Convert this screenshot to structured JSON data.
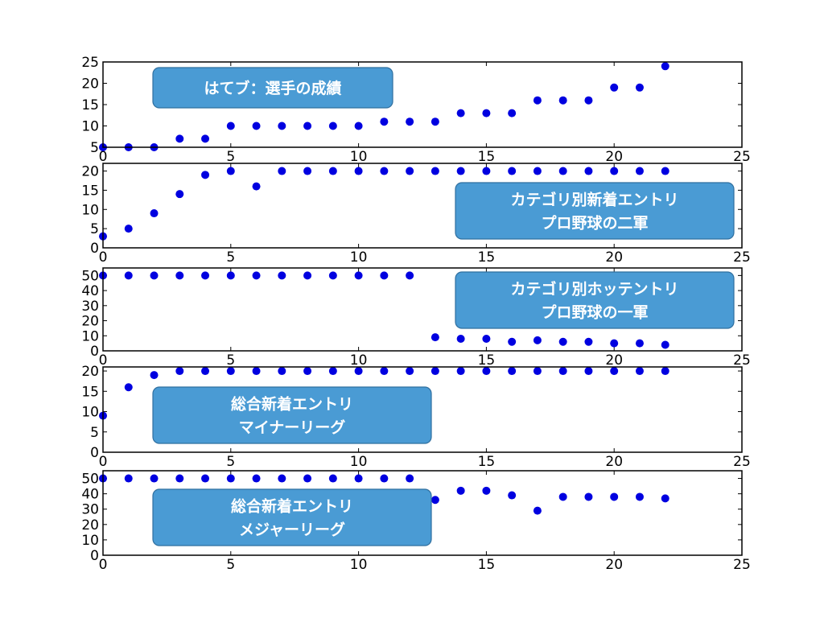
{
  "chart_data": [
    {
      "type": "scatter",
      "annotation": [
        "はてブ：選手の成績"
      ],
      "x": [
        0,
        1,
        2,
        3,
        4,
        5,
        6,
        7,
        8,
        9,
        10,
        11,
        12,
        13,
        14,
        15,
        16,
        17,
        18,
        19,
        20,
        21,
        22
      ],
      "y": [
        5,
        5,
        5,
        7,
        7,
        10,
        10,
        10,
        10,
        10,
        10,
        11,
        11,
        11,
        13,
        13,
        13,
        16,
        16,
        16,
        19,
        19,
        24
      ],
      "xlim": [
        0,
        25
      ],
      "ylim": [
        5,
        25
      ],
      "xticks": [
        "0",
        "5",
        "10",
        "15",
        "20",
        "25"
      ],
      "yticks": [
        "5",
        "10",
        "15",
        "20",
        "25"
      ]
    },
    {
      "type": "scatter",
      "annotation": [
        "カテゴリ別新着エントリ",
        "プロ野球の二軍"
      ],
      "x": [
        0,
        1,
        2,
        3,
        4,
        5,
        6,
        7,
        8,
        9,
        10,
        11,
        12,
        13,
        14,
        15,
        16,
        17,
        18,
        19,
        20,
        21,
        22
      ],
      "y": [
        3,
        5,
        9,
        14,
        19,
        20,
        16,
        20,
        20,
        20,
        20,
        20,
        20,
        20,
        20,
        20,
        20,
        20,
        20,
        20,
        20,
        20,
        20
      ],
      "xlim": [
        0,
        25
      ],
      "ylim": [
        0,
        22
      ],
      "xticks": [
        "0",
        "5",
        "10",
        "15",
        "20",
        "25"
      ],
      "yticks": [
        "0",
        "5",
        "10",
        "15",
        "20"
      ]
    },
    {
      "type": "scatter",
      "annotation": [
        "カテゴリ別ホッテントリ",
        "プロ野球の一軍"
      ],
      "x": [
        0,
        1,
        2,
        3,
        4,
        5,
        6,
        7,
        8,
        9,
        10,
        11,
        12,
        13,
        14,
        15,
        16,
        17,
        18,
        19,
        20,
        21,
        22
      ],
      "y": [
        50,
        50,
        50,
        50,
        50,
        50,
        50,
        50,
        50,
        50,
        50,
        50,
        50,
        9,
        8,
        8,
        6,
        7,
        6,
        6,
        5,
        5,
        4
      ],
      "xlim": [
        0,
        25
      ],
      "ylim": [
        0,
        55
      ],
      "xticks": [
        "0",
        "5",
        "10",
        "15",
        "20",
        "25"
      ],
      "yticks": [
        "0",
        "10",
        "20",
        "30",
        "40",
        "50"
      ]
    },
    {
      "type": "scatter",
      "annotation": [
        "総合新着エントリ",
        "マイナーリーグ"
      ],
      "x": [
        0,
        1,
        2,
        3,
        4,
        5,
        6,
        7,
        8,
        9,
        10,
        11,
        12,
        13,
        14,
        15,
        16,
        17,
        18,
        19,
        20,
        21,
        22
      ],
      "y": [
        9,
        16,
        19,
        20,
        20,
        20,
        20,
        20,
        20,
        20,
        20,
        20,
        20,
        20,
        20,
        20,
        20,
        20,
        20,
        20,
        20,
        20,
        20
      ],
      "xlim": [
        0,
        25
      ],
      "ylim": [
        0,
        21
      ],
      "xticks": [
        "0",
        "5",
        "10",
        "15",
        "20",
        "25"
      ],
      "yticks": [
        "0",
        "5",
        "10",
        "15",
        "20"
      ]
    },
    {
      "type": "scatter",
      "annotation": [
        "総合新着エントリ",
        "メジャーリーグ"
      ],
      "x": [
        0,
        1,
        2,
        3,
        4,
        5,
        6,
        7,
        8,
        9,
        10,
        11,
        12,
        13,
        14,
        15,
        16,
        17,
        18,
        19,
        20,
        21,
        22
      ],
      "y": [
        50,
        50,
        50,
        50,
        50,
        50,
        50,
        50,
        50,
        50,
        50,
        50,
        50,
        36,
        42,
        42,
        39,
        29,
        38,
        38,
        38,
        38,
        37
      ],
      "xlim": [
        0,
        25
      ],
      "ylim": [
        0,
        55
      ],
      "xticks": [
        "0",
        "5",
        "10",
        "15",
        "20",
        "25"
      ],
      "yticks": [
        "0",
        "10",
        "20",
        "30",
        "40",
        "50"
      ]
    }
  ],
  "colors": {
    "marker": "#0000e0",
    "annotation_fill": "#4a9bd4",
    "annotation_stroke": "#2f6f9f",
    "annotation_text": "#ffffff",
    "axis": "#000000"
  }
}
